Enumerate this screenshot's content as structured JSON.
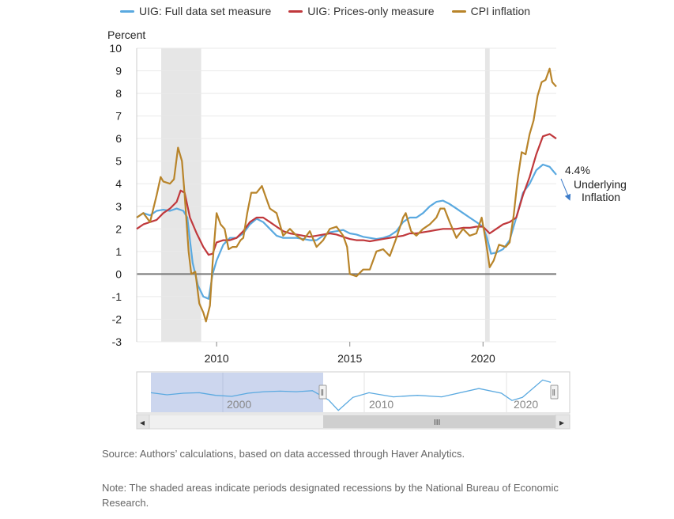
{
  "chart_data": {
    "type": "line",
    "ylabel": "Percent",
    "ylim": [
      -3,
      10
    ],
    "y_ticks": [
      "10",
      "9",
      "8",
      "7",
      "6",
      "5",
      "4",
      "3",
      "2",
      "1",
      "0",
      "-1",
      "-2",
      "-3"
    ],
    "x_ticks": [
      "2010",
      "2015",
      "2020"
    ],
    "x_range": [
      2007.0,
      2022.75
    ],
    "recessions": [
      [
        2007.92,
        2009.42
      ],
      [
        2020.08,
        2020.25
      ]
    ],
    "legend_position": "top",
    "series": [
      {
        "name": "UIG: Full data set measure",
        "color": "#5aa9e0",
        "points": [
          [
            2007.0,
            2.5
          ],
          [
            2007.25,
            2.7
          ],
          [
            2007.5,
            2.6
          ],
          [
            2007.75,
            2.8
          ],
          [
            2008.0,
            2.85
          ],
          [
            2008.25,
            2.8
          ],
          [
            2008.5,
            2.9
          ],
          [
            2008.75,
            2.8
          ],
          [
            2008.9,
            2.5
          ],
          [
            2009.0,
            1.5
          ],
          [
            2009.1,
            0.5
          ],
          [
            2009.3,
            -0.5
          ],
          [
            2009.5,
            -1.0
          ],
          [
            2009.7,
            -1.1
          ],
          [
            2009.85,
            0.0
          ],
          [
            2010.0,
            0.6
          ],
          [
            2010.25,
            1.3
          ],
          [
            2010.5,
            1.6
          ],
          [
            2010.75,
            1.6
          ],
          [
            2011.0,
            1.8
          ],
          [
            2011.25,
            2.2
          ],
          [
            2011.5,
            2.45
          ],
          [
            2011.75,
            2.3
          ],
          [
            2012.0,
            2.0
          ],
          [
            2012.25,
            1.7
          ],
          [
            2012.5,
            1.6
          ],
          [
            2012.75,
            1.6
          ],
          [
            2013.0,
            1.6
          ],
          [
            2013.25,
            1.55
          ],
          [
            2013.5,
            1.5
          ],
          [
            2013.75,
            1.5
          ],
          [
            2014.0,
            1.7
          ],
          [
            2014.25,
            1.85
          ],
          [
            2014.5,
            1.9
          ],
          [
            2014.75,
            1.95
          ],
          [
            2015.0,
            1.8
          ],
          [
            2015.25,
            1.75
          ],
          [
            2015.5,
            1.65
          ],
          [
            2015.75,
            1.6
          ],
          [
            2016.0,
            1.55
          ],
          [
            2016.25,
            1.6
          ],
          [
            2016.5,
            1.7
          ],
          [
            2016.75,
            1.9
          ],
          [
            2017.0,
            2.3
          ],
          [
            2017.25,
            2.5
          ],
          [
            2017.5,
            2.5
          ],
          [
            2017.75,
            2.7
          ],
          [
            2018.0,
            3.0
          ],
          [
            2018.25,
            3.2
          ],
          [
            2018.5,
            3.25
          ],
          [
            2018.75,
            3.1
          ],
          [
            2019.0,
            2.9
          ],
          [
            2019.25,
            2.7
          ],
          [
            2019.5,
            2.5
          ],
          [
            2019.75,
            2.3
          ],
          [
            2020.0,
            2.1
          ],
          [
            2020.15,
            1.6
          ],
          [
            2020.3,
            0.9
          ],
          [
            2020.5,
            0.95
          ],
          [
            2020.75,
            1.1
          ],
          [
            2021.0,
            1.5
          ],
          [
            2021.25,
            2.5
          ],
          [
            2021.5,
            3.6
          ],
          [
            2021.75,
            4.0
          ],
          [
            2022.0,
            4.6
          ],
          [
            2022.25,
            4.85
          ],
          [
            2022.5,
            4.75
          ],
          [
            2022.75,
            4.4
          ]
        ]
      },
      {
        "name": "UIG: Prices-only measure",
        "color": "#c0383c",
        "points": [
          [
            2007.0,
            2.0
          ],
          [
            2007.25,
            2.2
          ],
          [
            2007.5,
            2.3
          ],
          [
            2007.75,
            2.4
          ],
          [
            2008.0,
            2.7
          ],
          [
            2008.25,
            2.9
          ],
          [
            2008.5,
            3.2
          ],
          [
            2008.65,
            3.7
          ],
          [
            2008.8,
            3.6
          ],
          [
            2009.0,
            2.5
          ],
          [
            2009.25,
            1.8
          ],
          [
            2009.5,
            1.2
          ],
          [
            2009.7,
            0.85
          ],
          [
            2009.85,
            0.9
          ],
          [
            2010.0,
            1.4
          ],
          [
            2010.25,
            1.5
          ],
          [
            2010.5,
            1.5
          ],
          [
            2010.75,
            1.6
          ],
          [
            2011.0,
            1.9
          ],
          [
            2011.25,
            2.3
          ],
          [
            2011.5,
            2.5
          ],
          [
            2011.75,
            2.5
          ],
          [
            2012.0,
            2.3
          ],
          [
            2012.25,
            2.1
          ],
          [
            2012.5,
            1.9
          ],
          [
            2012.75,
            1.8
          ],
          [
            2013.0,
            1.75
          ],
          [
            2013.25,
            1.7
          ],
          [
            2013.5,
            1.65
          ],
          [
            2013.75,
            1.7
          ],
          [
            2014.0,
            1.75
          ],
          [
            2014.25,
            1.8
          ],
          [
            2014.5,
            1.75
          ],
          [
            2014.75,
            1.65
          ],
          [
            2015.0,
            1.55
          ],
          [
            2015.25,
            1.5
          ],
          [
            2015.5,
            1.5
          ],
          [
            2015.75,
            1.45
          ],
          [
            2016.0,
            1.5
          ],
          [
            2016.25,
            1.55
          ],
          [
            2016.5,
            1.6
          ],
          [
            2016.75,
            1.65
          ],
          [
            2017.0,
            1.7
          ],
          [
            2017.25,
            1.8
          ],
          [
            2017.5,
            1.8
          ],
          [
            2017.75,
            1.85
          ],
          [
            2018.0,
            1.9
          ],
          [
            2018.25,
            1.95
          ],
          [
            2018.5,
            2.0
          ],
          [
            2018.75,
            2.0
          ],
          [
            2019.0,
            2.0
          ],
          [
            2019.25,
            2.05
          ],
          [
            2019.5,
            2.05
          ],
          [
            2019.75,
            2.1
          ],
          [
            2020.0,
            2.1
          ],
          [
            2020.25,
            1.8
          ],
          [
            2020.5,
            2.0
          ],
          [
            2020.75,
            2.2
          ],
          [
            2021.0,
            2.3
          ],
          [
            2021.25,
            2.5
          ],
          [
            2021.5,
            3.5
          ],
          [
            2021.75,
            4.3
          ],
          [
            2022.0,
            5.3
          ],
          [
            2022.25,
            6.1
          ],
          [
            2022.5,
            6.2
          ],
          [
            2022.75,
            6.0
          ]
        ]
      },
      {
        "name": "CPI inflation",
        "color": "#b8842a",
        "points": [
          [
            2007.0,
            2.5
          ],
          [
            2007.25,
            2.7
          ],
          [
            2007.5,
            2.3
          ],
          [
            2007.75,
            3.5
          ],
          [
            2007.9,
            4.3
          ],
          [
            2008.0,
            4.1
          ],
          [
            2008.25,
            4.0
          ],
          [
            2008.4,
            4.2
          ],
          [
            2008.55,
            5.6
          ],
          [
            2008.7,
            5.0
          ],
          [
            2008.8,
            3.5
          ],
          [
            2008.95,
            1.0
          ],
          [
            2009.05,
            0.0
          ],
          [
            2009.2,
            0.1
          ],
          [
            2009.35,
            -1.3
          ],
          [
            2009.5,
            -1.7
          ],
          [
            2009.6,
            -2.1
          ],
          [
            2009.75,
            -1.4
          ],
          [
            2009.85,
            0.5
          ],
          [
            2009.95,
            2.0
          ],
          [
            2010.0,
            2.7
          ],
          [
            2010.15,
            2.2
          ],
          [
            2010.3,
            2.0
          ],
          [
            2010.45,
            1.1
          ],
          [
            2010.6,
            1.2
          ],
          [
            2010.75,
            1.2
          ],
          [
            2010.9,
            1.5
          ],
          [
            2011.0,
            1.6
          ],
          [
            2011.15,
            2.7
          ],
          [
            2011.3,
            3.6
          ],
          [
            2011.5,
            3.6
          ],
          [
            2011.7,
            3.9
          ],
          [
            2011.85,
            3.4
          ],
          [
            2012.0,
            2.9
          ],
          [
            2012.25,
            2.7
          ],
          [
            2012.5,
            1.7
          ],
          [
            2012.75,
            2.0
          ],
          [
            2013.0,
            1.7
          ],
          [
            2013.25,
            1.5
          ],
          [
            2013.5,
            1.9
          ],
          [
            2013.75,
            1.2
          ],
          [
            2014.0,
            1.5
          ],
          [
            2014.25,
            2.0
          ],
          [
            2014.5,
            2.1
          ],
          [
            2014.75,
            1.7
          ],
          [
            2014.9,
            1.2
          ],
          [
            2015.0,
            0.0
          ],
          [
            2015.25,
            -0.1
          ],
          [
            2015.5,
            0.2
          ],
          [
            2015.75,
            0.2
          ],
          [
            2016.0,
            1.0
          ],
          [
            2016.25,
            1.1
          ],
          [
            2016.5,
            0.8
          ],
          [
            2016.75,
            1.6
          ],
          [
            2017.0,
            2.5
          ],
          [
            2017.1,
            2.7
          ],
          [
            2017.3,
            1.9
          ],
          [
            2017.5,
            1.7
          ],
          [
            2017.75,
            2.0
          ],
          [
            2018.0,
            2.2
          ],
          [
            2018.25,
            2.5
          ],
          [
            2018.4,
            2.9
          ],
          [
            2018.55,
            2.9
          ],
          [
            2018.75,
            2.3
          ],
          [
            2019.0,
            1.6
          ],
          [
            2019.25,
            2.0
          ],
          [
            2019.5,
            1.7
          ],
          [
            2019.75,
            1.8
          ],
          [
            2019.95,
            2.5
          ],
          [
            2020.1,
            1.5
          ],
          [
            2020.25,
            0.3
          ],
          [
            2020.4,
            0.6
          ],
          [
            2020.6,
            1.3
          ],
          [
            2020.85,
            1.2
          ],
          [
            2021.0,
            1.4
          ],
          [
            2021.15,
            2.6
          ],
          [
            2021.3,
            4.2
          ],
          [
            2021.45,
            5.4
          ],
          [
            2021.6,
            5.3
          ],
          [
            2021.75,
            6.2
          ],
          [
            2021.9,
            6.8
          ],
          [
            2022.05,
            7.9
          ],
          [
            2022.2,
            8.5
          ],
          [
            2022.35,
            8.6
          ],
          [
            2022.5,
            9.1
          ],
          [
            2022.6,
            8.5
          ],
          [
            2022.75,
            8.3
          ]
        ]
      }
    ],
    "annotation": {
      "value_text": "4.4%",
      "line1": "Underlying",
      "line2": "Inflation",
      "color": "#3d7cc9"
    },
    "navigator": {
      "x_ticks": [
        "2000",
        "2010",
        "2020"
      ],
      "scrollbar_thumb_label": "III",
      "left_arrow": "◂",
      "right_arrow": "▸",
      "handle_glyph": "‖",
      "line_color": "#5aa9e0",
      "selection_color": "#ccd6ee"
    }
  },
  "footer": {
    "source": "Source: Authors’ calculations, based on data accessed through Haver Analytics.",
    "note": "Note: The shaded areas indicate periods designated recessions by the National Bureau of Economic Research."
  }
}
